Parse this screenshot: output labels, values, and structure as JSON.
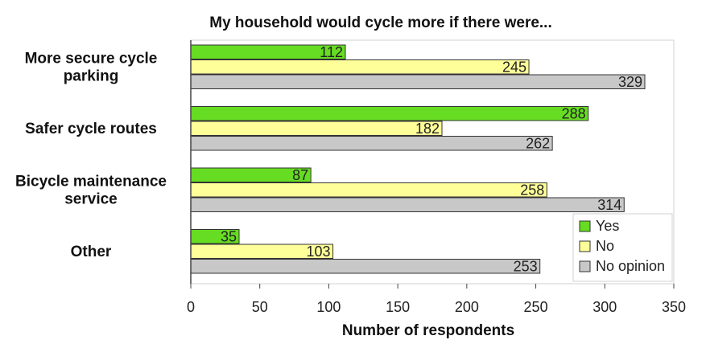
{
  "chart_data": {
    "type": "bar",
    "orientation": "horizontal",
    "title": "My household would cycle more if there were...",
    "xlabel": "Number of respondents",
    "ylabel": "",
    "categories": [
      [
        "More secure cycle",
        "parking"
      ],
      [
        "Safer cycle routes"
      ],
      [
        "Bicycle maintenance",
        "service"
      ],
      [
        "Other"
      ]
    ],
    "series": [
      {
        "name": "Yes",
        "color": "#66dd22",
        "values": [
          112,
          288,
          87,
          35
        ]
      },
      {
        "name": "No",
        "color": "#ffff99",
        "values": [
          245,
          182,
          258,
          103
        ]
      },
      {
        "name": "No opinion",
        "color": "#c8c8c8",
        "values": [
          329,
          262,
          314,
          253
        ]
      }
    ],
    "xlim": [
      0,
      350
    ],
    "xticks": [
      0,
      50,
      100,
      150,
      200,
      250,
      300,
      350
    ],
    "grid": false,
    "data_labels": true,
    "legend_position": "bottom-right"
  }
}
